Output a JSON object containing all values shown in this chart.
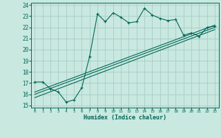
{
  "xlabel": "Humidex (Indice chaleur)",
  "xlim": [
    -0.5,
    23.5
  ],
  "ylim": [
    14.8,
    24.2
  ],
  "xticks": [
    0,
    1,
    2,
    3,
    4,
    5,
    6,
    7,
    8,
    9,
    10,
    11,
    12,
    13,
    14,
    15,
    16,
    17,
    18,
    19,
    20,
    21,
    22,
    23
  ],
  "yticks": [
    15,
    16,
    17,
    18,
    19,
    20,
    21,
    22,
    23,
    24
  ],
  "bg_color": "#c8e8e0",
  "grid_color": "#a8ccc4",
  "line_color": "#006655",
  "main_x": [
    0,
    1,
    2,
    3,
    4,
    5,
    6,
    7,
    8,
    9,
    10,
    11,
    12,
    13,
    14,
    15,
    16,
    17,
    18,
    19,
    20,
    21,
    22,
    23
  ],
  "main_y": [
    17.1,
    17.1,
    16.5,
    16.2,
    15.3,
    15.5,
    16.6,
    19.4,
    23.2,
    22.5,
    23.3,
    22.9,
    22.4,
    22.5,
    23.7,
    23.1,
    22.8,
    22.6,
    22.7,
    21.3,
    21.5,
    21.2,
    22.0,
    22.1
  ],
  "line1_x": [
    0,
    23
  ],
  "line1_y": [
    16.2,
    22.2
  ],
  "line2_x": [
    0,
    23
  ],
  "line2_y": [
    15.7,
    21.8
  ],
  "line3_x": [
    0,
    23
  ],
  "line3_y": [
    16.0,
    22.0
  ],
  "figsize": [
    3.2,
    2.0
  ],
  "dpi": 100
}
